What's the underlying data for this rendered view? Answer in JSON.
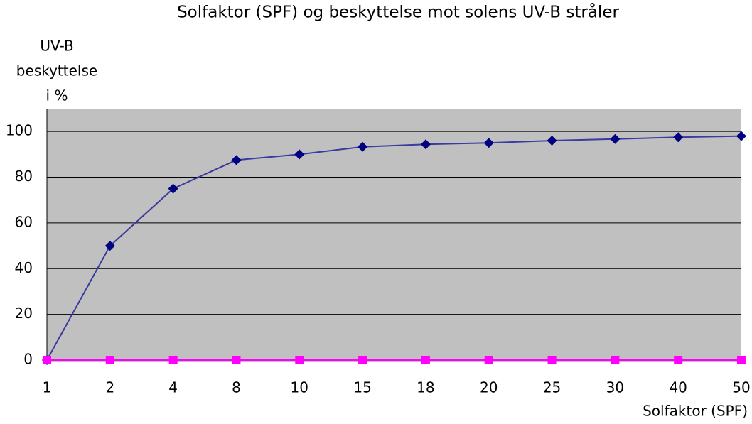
{
  "chart_data": {
    "type": "line",
    "title": "Solfaktor (SPF) og beskyttelse mot solens UV-B stråler",
    "y_label": [
      "UV-B",
      "beskyttelse",
      "i %"
    ],
    "x_label": "Solfaktor (SPF)",
    "categories": [
      "1",
      "2",
      "4",
      "8",
      "10",
      "15",
      "18",
      "20",
      "25",
      "30",
      "40",
      "50"
    ],
    "series": [
      {
        "color": "#000080",
        "line_color": "#3a3aa0",
        "marker": "diamond",
        "values": [
          0,
          50,
          75,
          87.5,
          90,
          93.3,
          94.4,
          95,
          96,
          96.7,
          97.5,
          98
        ]
      },
      {
        "color": "#ff00ff",
        "line_color": "#ff00ff",
        "marker": "square",
        "values": [
          0,
          0,
          0,
          0,
          0,
          0,
          0,
          0,
          0,
          0,
          0,
          0
        ]
      }
    ],
    "ylim": [
      0,
      110
    ],
    "yticks": [
      0,
      20,
      40,
      60,
      80,
      100
    ],
    "grid": true,
    "plot_background": "#c0c0c0"
  }
}
